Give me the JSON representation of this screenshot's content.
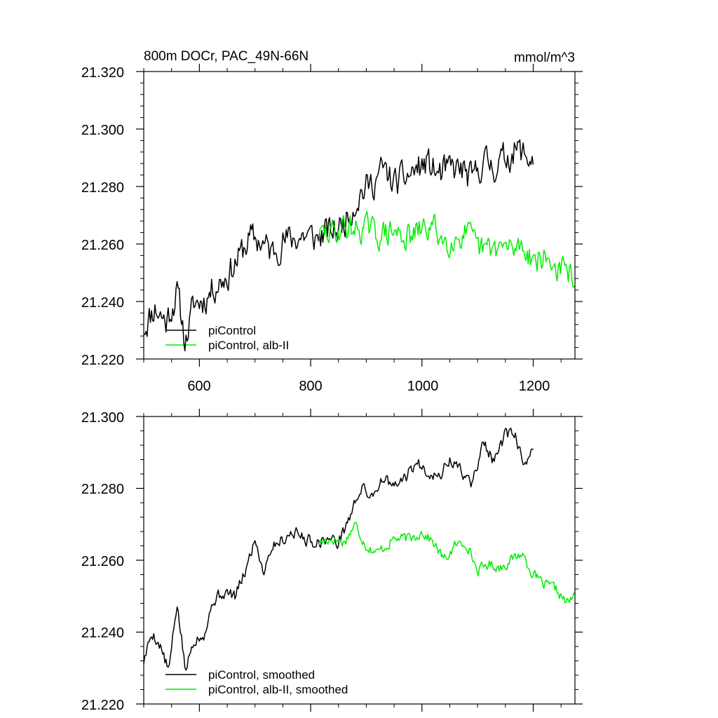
{
  "chart_data": [
    {
      "type": "line",
      "title": "800m DOCr, PAC_49N-66N",
      "units": "mmol/m^3",
      "xlim": [
        500,
        1275
      ],
      "ylim": [
        21.22,
        21.32
      ],
      "x_ticks": [
        600,
        800,
        1000,
        1200
      ],
      "x_tick_labels": [
        "600",
        "800",
        "1000",
        "1200"
      ],
      "y_ticks": [
        21.22,
        21.24,
        21.26,
        21.28,
        21.3,
        21.32
      ],
      "y_tick_labels": [
        "21.220",
        "21.240",
        "21.260",
        "21.280",
        "21.300",
        "21.320"
      ],
      "legend_position": "bottom-left",
      "series": [
        {
          "name": "piControl",
          "color": "#000000",
          "x_start": 500,
          "x_end": 1200,
          "anchors": [
            [
              500,
              21.231
            ],
            [
              520,
              21.238
            ],
            [
              540,
              21.233
            ],
            [
              560,
              21.243
            ],
            [
              575,
              21.226
            ],
            [
              590,
              21.239
            ],
            [
              610,
              21.241
            ],
            [
              630,
              21.246
            ],
            [
              650,
              21.249
            ],
            [
              670,
              21.255
            ],
            [
              690,
              21.262
            ],
            [
              710,
              21.261
            ],
            [
              730,
              21.257
            ],
            [
              750,
              21.261
            ],
            [
              770,
              21.262
            ],
            [
              790,
              21.263
            ],
            [
              810,
              21.262
            ],
            [
              830,
              21.264
            ],
            [
              850,
              21.265
            ],
            [
              870,
              21.271
            ],
            [
              890,
              21.278
            ],
            [
              910,
              21.281
            ],
            [
              930,
              21.286
            ],
            [
              950,
              21.281
            ],
            [
              970,
              21.283
            ],
            [
              990,
              21.286
            ],
            [
              1010,
              21.288
            ],
            [
              1030,
              21.284
            ],
            [
              1050,
              21.286
            ],
            [
              1070,
              21.286
            ],
            [
              1090,
              21.282
            ],
            [
              1110,
              21.289
            ],
            [
              1130,
              21.287
            ],
            [
              1150,
              21.29
            ],
            [
              1170,
              21.293
            ],
            [
              1190,
              21.29
            ],
            [
              1200,
              21.29
            ]
          ],
          "noise": 0.0085,
          "seed": 11
        },
        {
          "name": "piControl, alb-II",
          "color": "#00ee00",
          "x_start": 815,
          "x_end": 1275,
          "anchors": [
            [
              815,
              21.263
            ],
            [
              840,
              21.264
            ],
            [
              860,
              21.266
            ],
            [
              880,
              21.265
            ],
            [
              900,
              21.266
            ],
            [
              920,
              21.263
            ],
            [
              950,
              21.264
            ],
            [
              980,
              21.262
            ],
            [
              1000,
              21.265
            ],
            [
              1020,
              21.266
            ],
            [
              1040,
              21.261
            ],
            [
              1060,
              21.262
            ],
            [
              1080,
              21.264
            ],
            [
              1100,
              21.258
            ],
            [
              1120,
              21.258
            ],
            [
              1140,
              21.259
            ],
            [
              1160,
              21.258
            ],
            [
              1180,
              21.26
            ],
            [
              1200,
              21.255
            ],
            [
              1220,
              21.255
            ],
            [
              1240,
              21.252
            ],
            [
              1260,
              21.25
            ],
            [
              1275,
              21.249
            ]
          ],
          "noise": 0.0075,
          "seed": 29
        }
      ]
    },
    {
      "type": "line",
      "title": "",
      "xlim": [
        500,
        1275
      ],
      "ylim": [
        21.22,
        21.3
      ],
      "x_ticks": [
        600,
        800,
        1000,
        1200
      ],
      "x_tick_labels": [],
      "y_ticks": [
        21.22,
        21.24,
        21.26,
        21.28,
        21.3
      ],
      "y_tick_labels": [
        "21.220",
        "21.240",
        "21.260",
        "21.280",
        "21.300"
      ],
      "legend_position": "bottom-left",
      "series": [
        {
          "name": "piControl, smoothed",
          "color": "#000000",
          "x_start": 500,
          "x_end": 1200,
          "anchors": [
            [
              500,
              21.232
            ],
            [
              515,
              21.24
            ],
            [
              530,
              21.236
            ],
            [
              545,
              21.229
            ],
            [
              560,
              21.248
            ],
            [
              575,
              21.229
            ],
            [
              590,
              21.238
            ],
            [
              610,
              21.24
            ],
            [
              625,
              21.249
            ],
            [
              645,
              21.251
            ],
            [
              665,
              21.25
            ],
            [
              685,
              21.258
            ],
            [
              700,
              21.266
            ],
            [
              715,
              21.257
            ],
            [
              730,
              21.264
            ],
            [
              750,
              21.266
            ],
            [
              770,
              21.268
            ],
            [
              790,
              21.266
            ],
            [
              810,
              21.265
            ],
            [
              830,
              21.266
            ],
            [
              850,
              21.265
            ],
            [
              870,
              21.272
            ],
            [
              890,
              21.28
            ],
            [
              910,
              21.278
            ],
            [
              930,
              21.283
            ],
            [
              950,
              21.28
            ],
            [
              970,
              21.283
            ],
            [
              990,
              21.287
            ],
            [
              1010,
              21.285
            ],
            [
              1030,
              21.283
            ],
            [
              1050,
              21.288
            ],
            [
              1070,
              21.285
            ],
            [
              1090,
              21.281
            ],
            [
              1110,
              21.293
            ],
            [
              1130,
              21.287
            ],
            [
              1150,
              21.295
            ],
            [
              1170,
              21.294
            ],
            [
              1185,
              21.285
            ],
            [
              1200,
              21.291
            ]
          ],
          "noise": 0.0028,
          "seed": 5
        },
        {
          "name": "piControl, alb-II, smoothed",
          "color": "#00ee00",
          "x_start": 815,
          "x_end": 1275,
          "anchors": [
            [
              815,
              21.265
            ],
            [
              840,
              21.266
            ],
            [
              860,
              21.265
            ],
            [
              880,
              21.27
            ],
            [
              900,
              21.264
            ],
            [
              920,
              21.262
            ],
            [
              950,
              21.266
            ],
            [
              980,
              21.266
            ],
            [
              1000,
              21.268
            ],
            [
              1020,
              21.265
            ],
            [
              1040,
              21.26
            ],
            [
              1060,
              21.264
            ],
            [
              1080,
              21.265
            ],
            [
              1100,
              21.257
            ],
            [
              1120,
              21.259
            ],
            [
              1140,
              21.258
            ],
            [
              1160,
              21.26
            ],
            [
              1180,
              21.262
            ],
            [
              1200,
              21.256
            ],
            [
              1220,
              21.253
            ],
            [
              1240,
              21.252
            ],
            [
              1260,
              21.248
            ],
            [
              1275,
              21.25
            ]
          ],
          "noise": 0.0024,
          "seed": 17
        }
      ]
    }
  ]
}
